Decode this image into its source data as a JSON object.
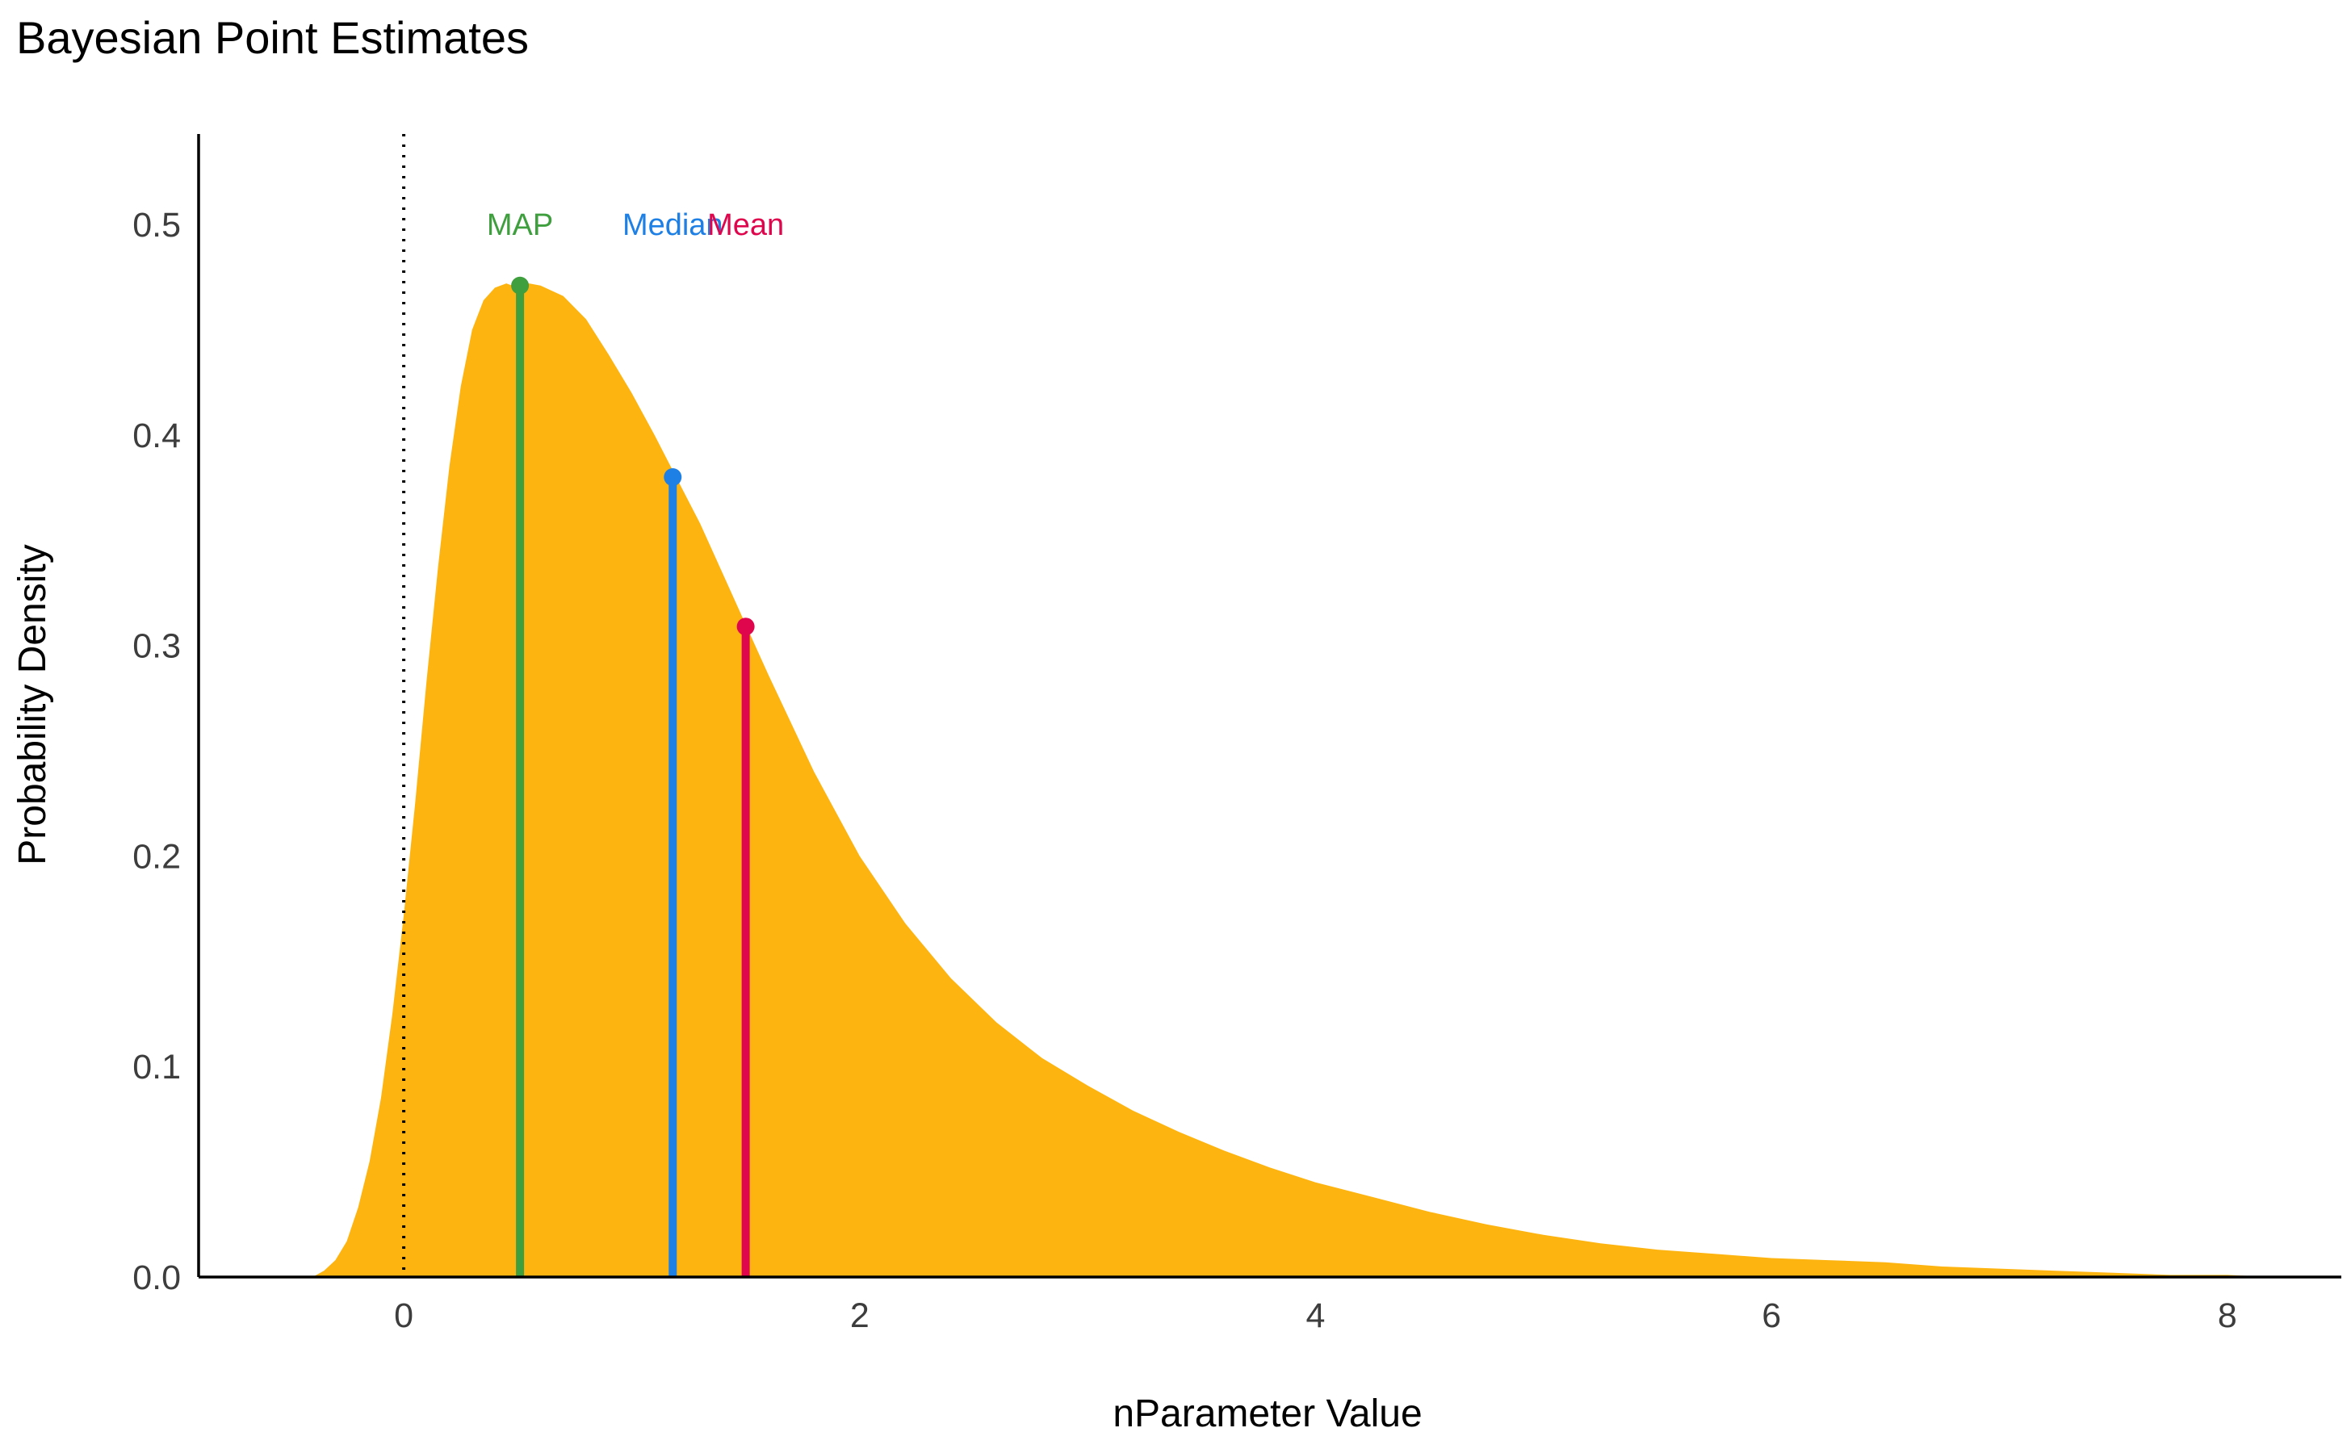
{
  "chart_data": {
    "type": "area",
    "title": "Bayesian Point Estimates",
    "xlabel": "nParameter Value",
    "ylabel": "Probability Density",
    "xlim": [
      -0.9,
      8.5
    ],
    "ylim": [
      0,
      0.543
    ],
    "x_ticks": [
      0,
      2,
      4,
      6,
      8
    ],
    "y_ticks": [
      0.0,
      0.1,
      0.2,
      0.3,
      0.4,
      0.5
    ],
    "y_tick_labels": [
      "0.0",
      "0.1",
      "0.2",
      "0.3",
      "0.4",
      "0.5"
    ],
    "grid": false,
    "fill_color": "#FDB410",
    "reference_line": {
      "x": 0,
      "style": "dotted",
      "color": "#000000"
    },
    "density": {
      "x": [
        -0.6,
        -0.4,
        -0.35,
        -0.3,
        -0.25,
        -0.2,
        -0.15,
        -0.1,
        -0.05,
        0,
        0.05,
        0.1,
        0.15,
        0.2,
        0.25,
        0.3,
        0.35,
        0.4,
        0.45,
        0.5,
        0.55,
        0.6,
        0.7,
        0.8,
        0.9,
        1.0,
        1.1,
        1.2,
        1.3,
        1.4,
        1.5,
        1.6,
        1.8,
        2.0,
        2.2,
        2.4,
        2.6,
        2.8,
        3.0,
        3.2,
        3.4,
        3.6,
        3.8,
        4.0,
        4.25,
        4.5,
        4.75,
        5.0,
        5.25,
        5.5,
        5.75,
        6.0,
        6.25,
        6.5,
        6.75,
        7.0,
        7.25,
        7.5,
        7.75,
        8.0,
        8.2
      ],
      "y": [
        0.0,
        0.0,
        0.003,
        0.008,
        0.017,
        0.033,
        0.055,
        0.085,
        0.125,
        0.172,
        0.225,
        0.283,
        0.337,
        0.385,
        0.423,
        0.45,
        0.464,
        0.47,
        0.472,
        0.47,
        0.472,
        0.471,
        0.466,
        0.455,
        0.438,
        0.42,
        0.4,
        0.379,
        0.358,
        0.334,
        0.31,
        0.286,
        0.24,
        0.2,
        0.168,
        0.142,
        0.121,
        0.104,
        0.091,
        0.079,
        0.069,
        0.06,
        0.052,
        0.045,
        0.038,
        0.031,
        0.025,
        0.02,
        0.016,
        0.013,
        0.011,
        0.009,
        0.008,
        0.007,
        0.005,
        0.004,
        0.003,
        0.002,
        0.001,
        0.001,
        0.0
      ]
    },
    "markers": [
      {
        "name": "MAP",
        "x": 0.51,
        "y": 0.471,
        "color": "#3F9F3F"
      },
      {
        "name": "Median",
        "x": 1.18,
        "y": 0.38,
        "color": "#1E7FE4"
      },
      {
        "name": "Mean",
        "x": 1.5,
        "y": 0.309,
        "color": "#E0064E"
      }
    ],
    "marker_label_y": 0.495
  }
}
